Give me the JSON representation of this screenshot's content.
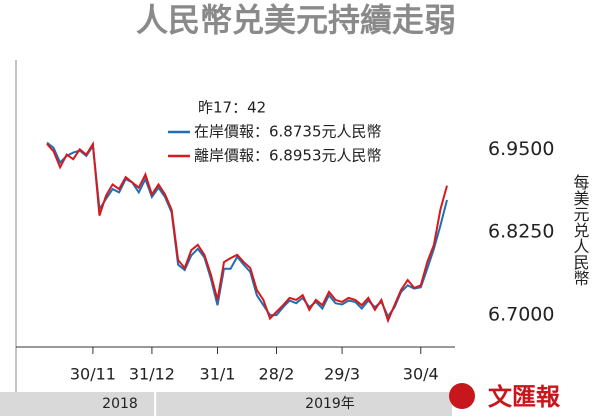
{
  "chart_data": {
    "type": "line",
    "title": "人民幣兑美元持續走弱",
    "annotation": "昨17：42",
    "y_label": "每美元兑人民幣",
    "year_labels": [
      "2018",
      "2019年"
    ],
    "logo": "文匯報",
    "categories": [
      null,
      null,
      null,
      null,
      null,
      null,
      null,
      "30/11",
      null,
      null,
      null,
      null,
      null,
      null,
      null,
      null,
      "31/12",
      null,
      null,
      null,
      null,
      null,
      null,
      null,
      null,
      null,
      "31/1",
      null,
      null,
      null,
      null,
      null,
      null,
      null,
      null,
      "28/2",
      null,
      null,
      null,
      null,
      null,
      null,
      null,
      null,
      null,
      "29/3",
      null,
      null,
      null,
      null,
      null,
      null,
      null,
      null,
      null,
      null,
      null,
      "30/4",
      null,
      null,
      null,
      null
    ],
    "series": [
      {
        "name": "在岸價報：6.8735元人民幣",
        "color": "#1f6fb2",
        "values": [
          6.96,
          6.952,
          6.93,
          6.94,
          6.945,
          6.948,
          6.94,
          6.955,
          6.86,
          6.875,
          6.89,
          6.885,
          6.905,
          6.9,
          6.885,
          6.905,
          6.878,
          6.892,
          6.878,
          6.855,
          6.776,
          6.768,
          6.79,
          6.8,
          6.787,
          6.755,
          6.715,
          6.77,
          6.77,
          6.788,
          6.776,
          6.765,
          6.73,
          6.715,
          6.7,
          6.7,
          6.712,
          6.722,
          6.718,
          6.726,
          6.712,
          6.72,
          6.71,
          6.73,
          6.718,
          6.716,
          6.722,
          6.72,
          6.71,
          6.722,
          6.712,
          6.72,
          6.698,
          6.712,
          6.735,
          6.745,
          6.74,
          6.742,
          6.77,
          6.8,
          6.835,
          6.8735
        ]
      },
      {
        "name": "離岸價報：6.8953元人民幣",
        "color": "#d7191c",
        "values": [
          6.958,
          6.947,
          6.923,
          6.942,
          6.935,
          6.95,
          6.942,
          6.958,
          6.85,
          6.88,
          6.897,
          6.89,
          6.908,
          6.9,
          6.892,
          6.912,
          6.882,
          6.897,
          6.882,
          6.859,
          6.783,
          6.771,
          6.798,
          6.806,
          6.791,
          6.761,
          6.723,
          6.78,
          6.786,
          6.791,
          6.78,
          6.771,
          6.738,
          6.723,
          6.695,
          6.705,
          6.715,
          6.726,
          6.723,
          6.73,
          6.708,
          6.723,
          6.715,
          6.735,
          6.723,
          6.72,
          6.726,
          6.723,
          6.715,
          6.726,
          6.708,
          6.723,
          6.692,
          6.715,
          6.738,
          6.753,
          6.741,
          6.745,
          6.78,
          6.806,
          6.859,
          6.8953
        ]
      }
    ],
    "ylim": [
      6.652,
      7.08
    ],
    "yticks": [
      {
        "value": 6.95,
        "label": "6.9500"
      },
      {
        "value": 6.825,
        "label": "6.8250"
      },
      {
        "value": 6.7,
        "label": "6.7000"
      }
    ]
  }
}
